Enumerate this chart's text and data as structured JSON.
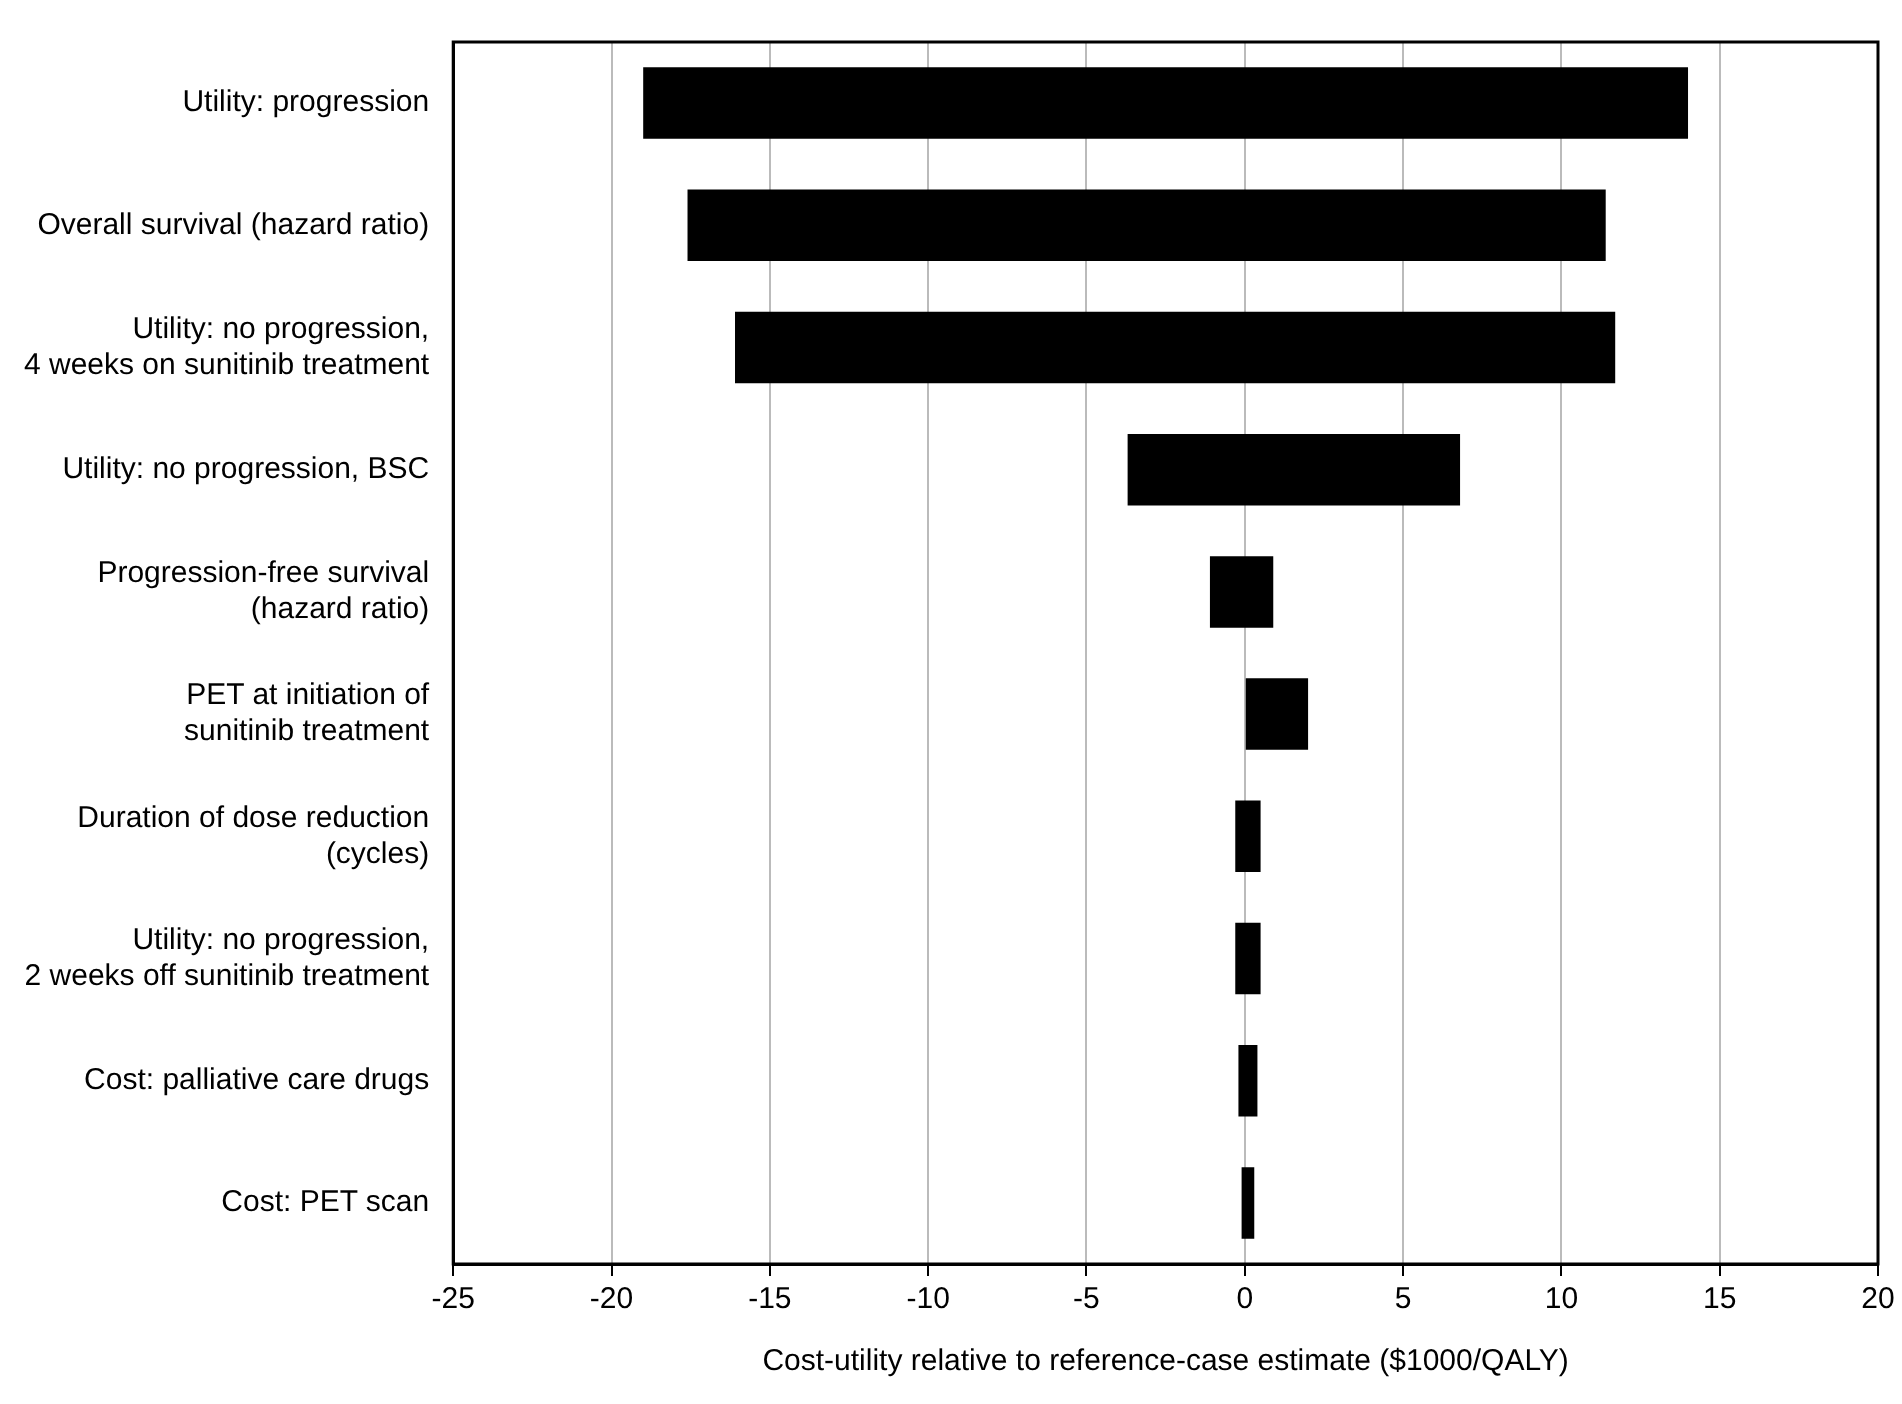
{
  "chart_data": {
    "type": "bar",
    "orientation": "horizontal",
    "xlabel": "Cost-utility relative to reference-case estimate ($1000/QALY)",
    "categories": [
      "Utility: progression",
      "Overall survival (hazard ratio)",
      "Utility: no progression,\n4 weeks on sunitinib treatment",
      "Utility: no progression, BSC",
      "Progression-free survival\n(hazard ratio)",
      "PET at initiation of\nsunitinib treatment",
      "Duration of dose reduction\n(cycles)",
      "Utility: no progression,\n2 weeks off sunitinib treatment",
      "Cost: palliative care drugs",
      "Cost: PET scan"
    ],
    "base": [
      -19.0,
      -17.6,
      -16.1,
      -3.7,
      -1.1,
      0,
      -0.3,
      -0.3,
      -0.2,
      -0.1
    ],
    "values": [
      33.0,
      29.0,
      27.8,
      10.5,
      2.0,
      2.0,
      0.8,
      0.8,
      0.6,
      0.4
    ],
    "color": "#000000",
    "xlim": [
      -25,
      20
    ],
    "xticks": [
      -25,
      -20,
      -15,
      -10,
      -5,
      0,
      5,
      10,
      15,
      20
    ],
    "grid": "x",
    "legend": false
  }
}
